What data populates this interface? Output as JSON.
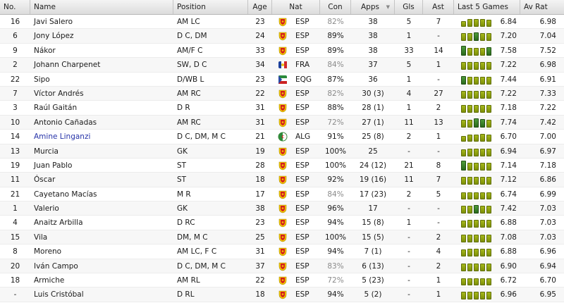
{
  "headers": {
    "no": "No.",
    "name": "Name",
    "position": "Position",
    "age": "Age",
    "nat": "Nat",
    "con": "Con",
    "apps": "Apps",
    "gls": "Gls",
    "ast": "Ast",
    "last5": "Last 5 Games",
    "avrat": "Av Rat"
  },
  "sort_indicator": "▼",
  "colors": {
    "flag_esp": "#d41f1f",
    "flag_gold": "#f2c500",
    "form_yellow": "#8fa312",
    "form_green": "#4f9c3b",
    "link": "#2633a8"
  },
  "players": [
    {
      "no": "16",
      "name": "Javi Salero",
      "position": "AM LC",
      "age": "23",
      "nat": "ESP",
      "con": "82%",
      "apps": "38",
      "gls": "5",
      "ast": "7",
      "last5_rating": "6.84",
      "avrat": "6.98",
      "form_levels": [
        0.6,
        0.8,
        0.75,
        0.8,
        0.7
      ]
    },
    {
      "no": "6",
      "name": "Jony López",
      "position": "D C, DM",
      "age": "24",
      "nat": "ESP",
      "con": "89%",
      "apps": "38",
      "gls": "1",
      "ast": "-",
      "last5_rating": "7.20",
      "avrat": "7.04",
      "form_levels": [
        0.8,
        0.75,
        0.85,
        0.8,
        0.8
      ]
    },
    {
      "no": "9",
      "name": "Nákor",
      "position": "AM/F C",
      "age": "33",
      "nat": "ESP",
      "con": "89%",
      "apps": "38",
      "gls": "33",
      "ast": "14",
      "last5_rating": "7.58",
      "avrat": "7.52",
      "form_levels": [
        1.0,
        0.75,
        0.8,
        0.8,
        0.85
      ]
    },
    {
      "no": "2",
      "name": "Johann Charpenet",
      "position": "SW, D C",
      "age": "34",
      "nat": "FRA",
      "con": "84%",
      "apps": "37",
      "gls": "5",
      "ast": "1",
      "last5_rating": "7.22",
      "avrat": "6.98",
      "form_levels": [
        0.8,
        0.75,
        0.8,
        0.8,
        0.75
      ]
    },
    {
      "no": "22",
      "name": "Sipo",
      "position": "D/WB L",
      "age": "23",
      "nat": "EQG",
      "con": "87%",
      "apps": "36",
      "gls": "1",
      "ast": "-",
      "last5_rating": "7.44",
      "avrat": "6.91",
      "form_levels": [
        0.85,
        0.8,
        0.8,
        0.8,
        0.8
      ]
    },
    {
      "no": "7",
      "name": "Víctor Andrés",
      "position": "AM RC",
      "age": "22",
      "nat": "ESP",
      "con": "82%",
      "apps": "30 (3)",
      "gls": "4",
      "ast": "27",
      "last5_rating": "7.22",
      "avrat": "7.33",
      "form_levels": [
        0.8,
        0.75,
        0.8,
        0.8,
        0.8
      ]
    },
    {
      "no": "3",
      "name": "Raúl Gaitán",
      "position": "D R",
      "age": "31",
      "nat": "ESP",
      "con": "88%",
      "apps": "28 (1)",
      "gls": "1",
      "ast": "2",
      "last5_rating": "7.18",
      "avrat": "7.22",
      "form_levels": [
        0.75,
        0.8,
        0.8,
        0.8,
        0.75
      ]
    },
    {
      "no": "10",
      "name": "Antonio Cañadas",
      "position": "AM RC",
      "age": "31",
      "nat": "ESP",
      "con": "72%",
      "apps": "27 (1)",
      "gls": "11",
      "ast": "13",
      "last5_rating": "7.74",
      "avrat": "7.42",
      "form_levels": [
        0.8,
        0.8,
        0.9,
        0.85,
        0.8
      ]
    },
    {
      "no": "14",
      "name": "Amine Linganzi",
      "position": "D C, DM, M C",
      "age": "21",
      "nat": "ALG",
      "con": "91%",
      "apps": "25 (8)",
      "gls": "2",
      "ast": "1",
      "last5_rating": "6.70",
      "avrat": "7.00",
      "form_levels": [
        0.6,
        0.7,
        0.7,
        0.75,
        0.7
      ]
    },
    {
      "no": "13",
      "name": "Murcia",
      "position": "GK",
      "age": "19",
      "nat": "ESP",
      "con": "100%",
      "apps": "25",
      "gls": "-",
      "ast": "-",
      "last5_rating": "6.94",
      "avrat": "6.97",
      "form_levels": [
        0.7,
        0.75,
        0.75,
        0.75,
        0.75
      ]
    },
    {
      "no": "19",
      "name": "Juan Pablo",
      "position": "ST",
      "age": "28",
      "nat": "ESP",
      "con": "100%",
      "apps": "24 (12)",
      "gls": "21",
      "ast": "8",
      "last5_rating": "7.14",
      "avrat": "7.18",
      "form_levels": [
        1.0,
        0.75,
        0.75,
        0.75,
        0.75
      ]
    },
    {
      "no": "11",
      "name": "Óscar",
      "position": "ST",
      "age": "18",
      "nat": "ESP",
      "con": "92%",
      "apps": "19 (16)",
      "gls": "11",
      "ast": "7",
      "last5_rating": "7.12",
      "avrat": "6.86",
      "form_levels": [
        0.75,
        0.8,
        0.8,
        0.75,
        0.75
      ]
    },
    {
      "no": "21",
      "name": "Cayetano Macías",
      "position": "M R",
      "age": "17",
      "nat": "ESP",
      "con": "84%",
      "apps": "17 (23)",
      "gls": "2",
      "ast": "5",
      "last5_rating": "6.74",
      "avrat": "6.99",
      "form_levels": [
        0.7,
        0.7,
        0.7,
        0.7,
        0.7
      ]
    },
    {
      "no": "1",
      "name": "Valerio",
      "position": "GK",
      "age": "38",
      "nat": "ESP",
      "con": "96%",
      "apps": "17",
      "gls": "-",
      "ast": "-",
      "last5_rating": "7.42",
      "avrat": "7.03",
      "form_levels": [
        0.8,
        0.8,
        0.85,
        0.8,
        0.8
      ]
    },
    {
      "no": "4",
      "name": "Anaitz Arbilla",
      "position": "D RC",
      "age": "23",
      "nat": "ESP",
      "con": "94%",
      "apps": "15 (8)",
      "gls": "1",
      "ast": "-",
      "last5_rating": "6.88",
      "avrat": "7.03",
      "form_levels": [
        0.7,
        0.75,
        0.75,
        0.75,
        0.75
      ]
    },
    {
      "no": "15",
      "name": "Vila",
      "position": "DM, M C",
      "age": "25",
      "nat": "ESP",
      "con": "100%",
      "apps": "15 (5)",
      "gls": "-",
      "ast": "2",
      "last5_rating": "7.08",
      "avrat": "7.03",
      "form_levels": [
        0.75,
        0.75,
        0.8,
        0.75,
        0.75
      ]
    },
    {
      "no": "8",
      "name": "Moreno",
      "position": "AM LC, F C",
      "age": "31",
      "nat": "ESP",
      "con": "94%",
      "apps": "7 (1)",
      "gls": "-",
      "ast": "4",
      "last5_rating": "6.88",
      "avrat": "6.96",
      "form_levels": [
        0.7,
        0.75,
        0.75,
        0.75,
        0.75
      ]
    },
    {
      "no": "20",
      "name": "Iván Campo",
      "position": "D C, DM, M C",
      "age": "37",
      "nat": "ESP",
      "con": "83%",
      "apps": "6 (13)",
      "gls": "-",
      "ast": "2",
      "last5_rating": "6.90",
      "avrat": "6.94",
      "form_levels": [
        0.75,
        0.75,
        0.75,
        0.75,
        0.75
      ]
    },
    {
      "no": "18",
      "name": "Armiche",
      "position": "AM RL",
      "age": "22",
      "nat": "ESP",
      "con": "72%",
      "apps": "5 (23)",
      "gls": "-",
      "ast": "1",
      "last5_rating": "6.72",
      "avrat": "6.70",
      "form_levels": [
        0.7,
        0.7,
        0.7,
        0.7,
        0.7
      ]
    },
    {
      "no": "-",
      "name": "Luis Cristóbal",
      "position": "D RL",
      "age": "18",
      "nat": "ESP",
      "con": "94%",
      "apps": "5 (2)",
      "gls": "-",
      "ast": "1",
      "last5_rating": "6.96",
      "avrat": "6.95",
      "form_levels": [
        0.75,
        0.75,
        0.75,
        0.75,
        0.75
      ]
    }
  ]
}
